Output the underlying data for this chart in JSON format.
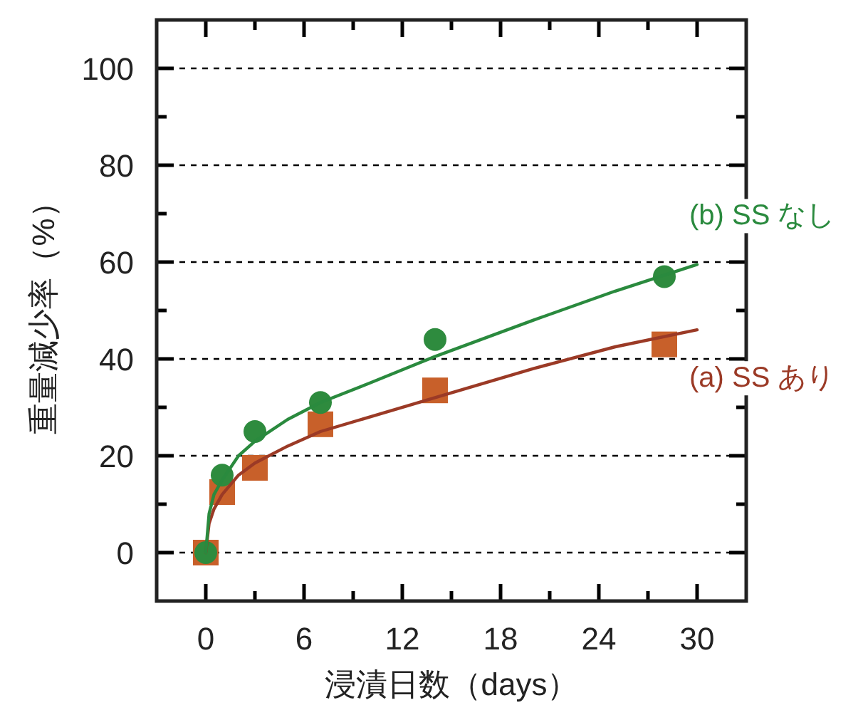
{
  "chart_data": {
    "type": "scatter",
    "xlabel": "浸漬日数（days）",
    "ylabel": "重量減少率（%）",
    "xlim": [
      -3,
      33
    ],
    "ylim": [
      -10,
      110
    ],
    "xticks": [
      0,
      {
        "value": 3,
        "label": null
      },
      6,
      {
        "value": 9,
        "label": null
      },
      12,
      {
        "value": 15,
        "label": null
      },
      18,
      {
        "value": 21,
        "label": null
      },
      24,
      {
        "value": 27,
        "label": null
      },
      30
    ],
    "yticks": [
      0,
      {
        "value": 10,
        "label": null
      },
      20,
      {
        "value": 30,
        "label": null
      },
      40,
      {
        "value": 50,
        "label": null
      },
      60,
      {
        "value": 70,
        "label": null
      },
      80,
      {
        "value": 90,
        "label": null
      },
      100
    ],
    "grid": "y",
    "legend": false,
    "series": [
      {
        "marker": "square",
        "color": "#c8602a",
        "x": [
          0,
          1,
          3,
          7,
          14,
          28
        ],
        "values": [
          0,
          12.5,
          17.5,
          26.5,
          33.5,
          43
        ]
      },
      {
        "marker": "circle",
        "color": "#2e8b3e",
        "x": [
          0,
          1,
          3,
          7,
          14,
          28
        ],
        "values": [
          0,
          16,
          25,
          31,
          44,
          57
        ]
      },
      {
        "type": "line",
        "name": "(a) SS あり",
        "color": "#9b3a26",
        "x": [
          0,
          0.2,
          0.5,
          1,
          2,
          3,
          5,
          7,
          10,
          14,
          20,
          25,
          30
        ],
        "values": [
          0,
          6,
          9,
          12,
          16,
          18.5,
          22,
          25,
          28,
          32,
          38,
          42.5,
          46
        ]
      },
      {
        "type": "line",
        "name": "(b) SS なし",
        "color": "#2a8a3e",
        "x": [
          0,
          0.2,
          0.5,
          1,
          2,
          3,
          5,
          7,
          10,
          14,
          20,
          25,
          30
        ],
        "values": [
          0,
          8,
          12,
          15,
          20,
          23,
          27.5,
          31,
          35,
          40.5,
          48,
          54,
          59.5
        ]
      }
    ]
  }
}
